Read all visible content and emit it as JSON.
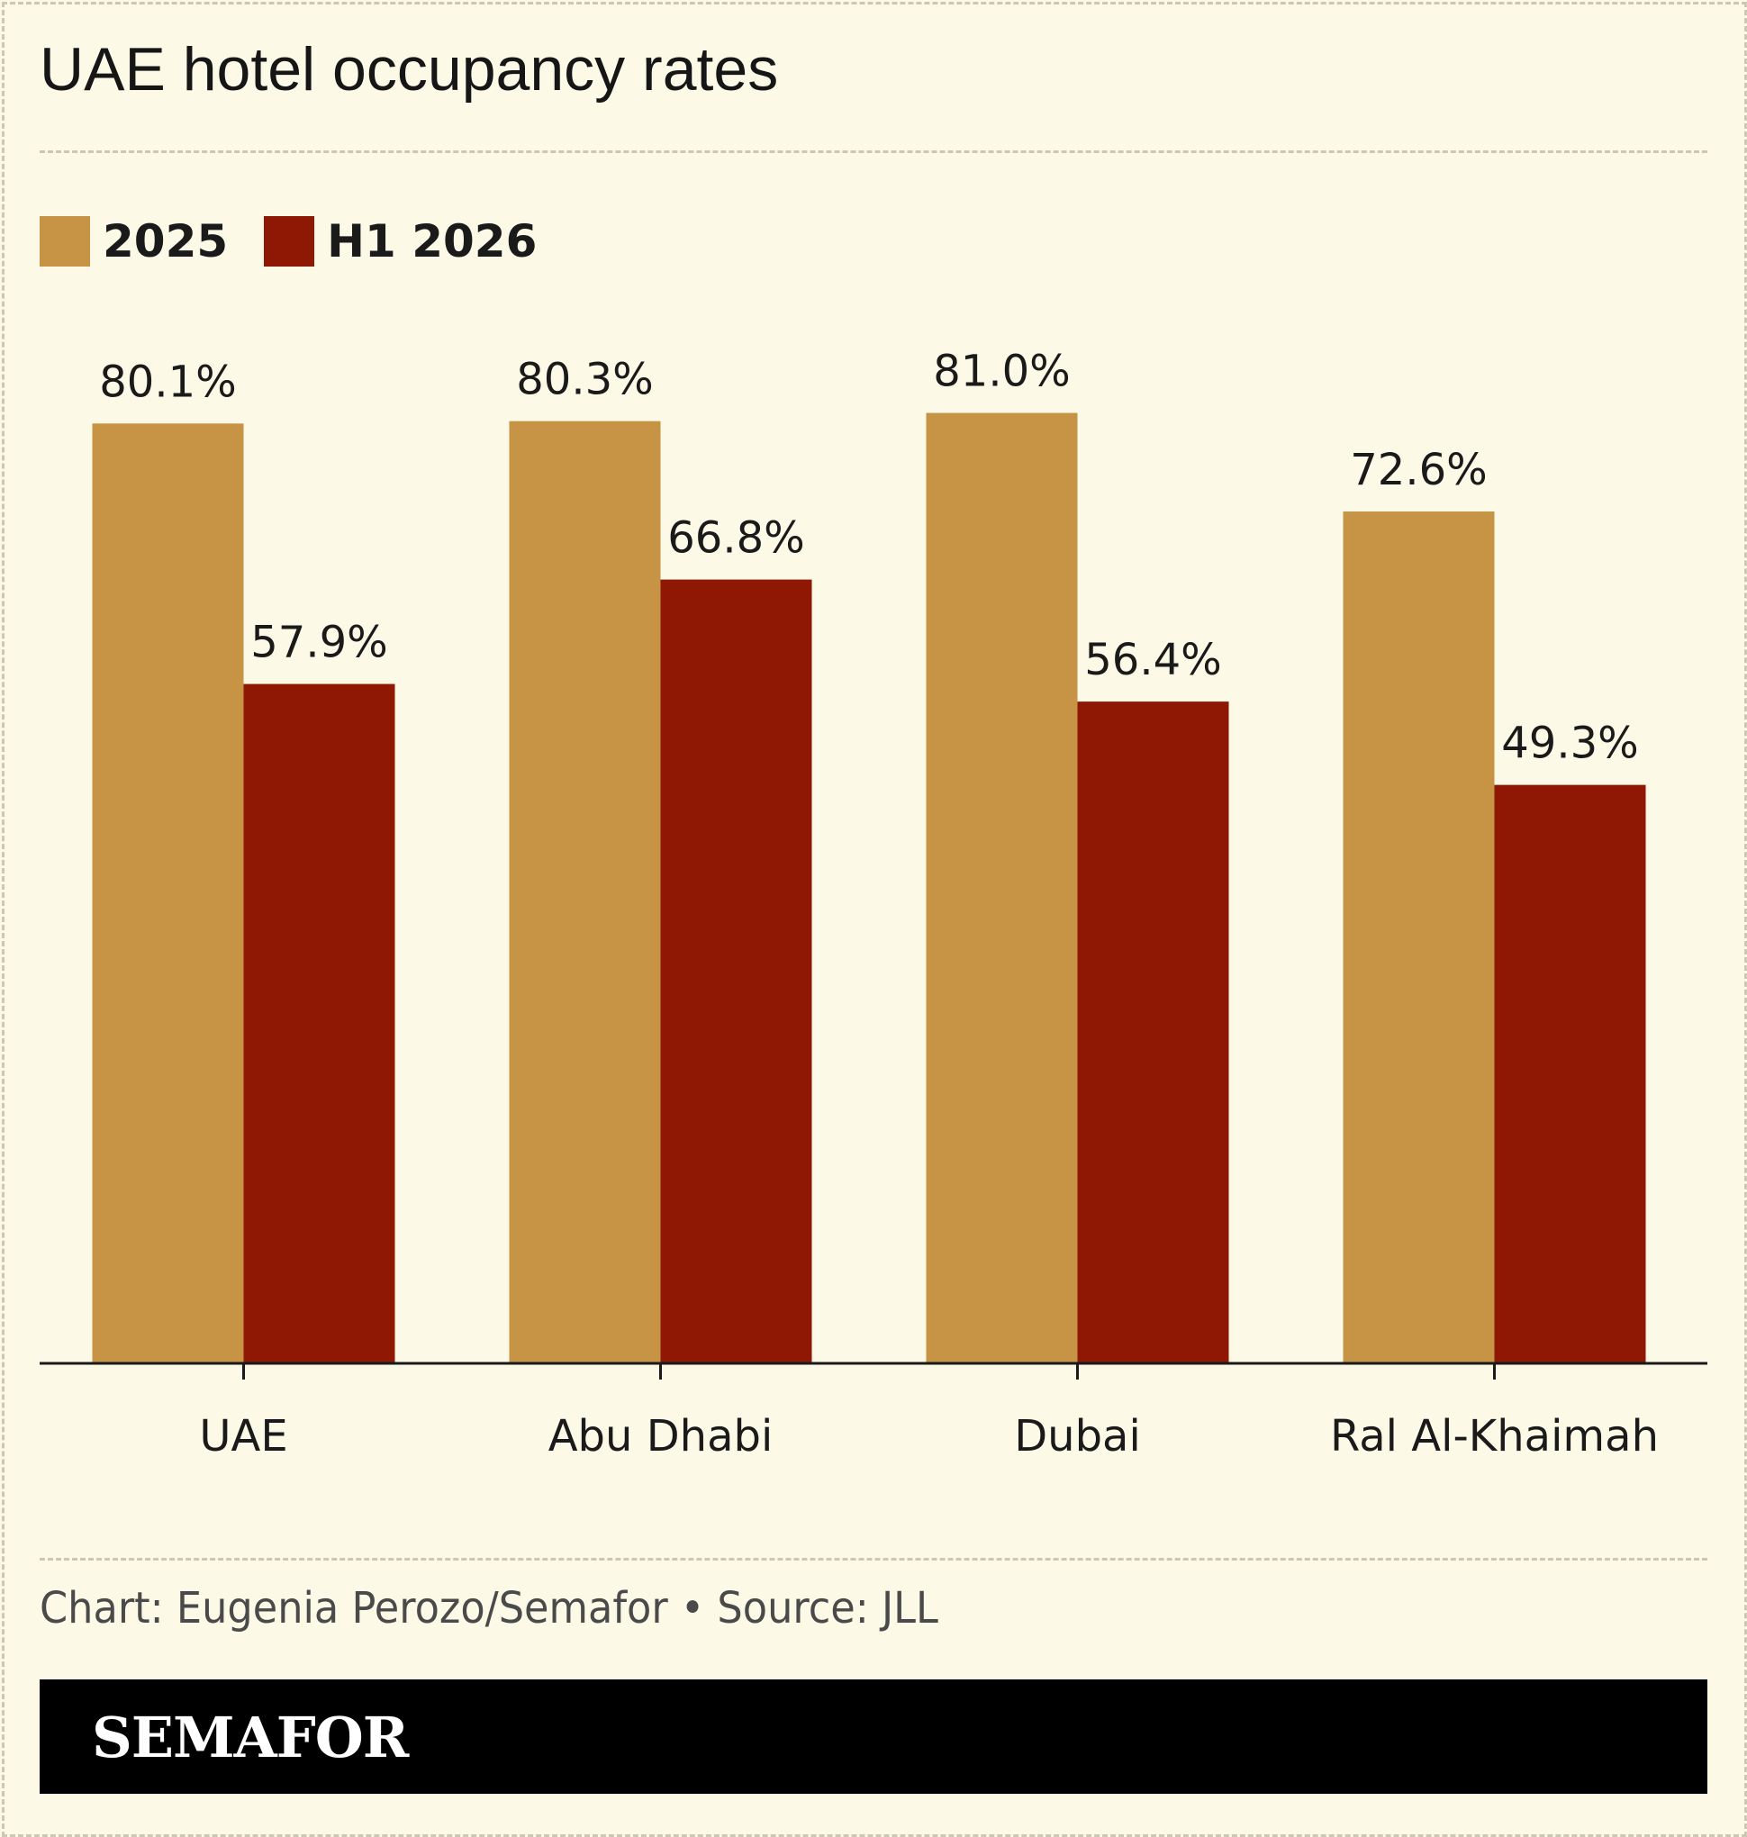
{
  "title": "UAE hotel occupancy rates",
  "legend": [
    {
      "label": "2025",
      "color": "#c69444"
    },
    {
      "label": "H1 2026",
      "color": "#8e1804"
    }
  ],
  "credit": "Chart: Eugenia Perozo/Semafor • Source: JLL",
  "brand": "SEMAFOR",
  "chart_data": {
    "type": "bar",
    "title": "UAE hotel occupancy rates",
    "categories": [
      "UAE",
      "Abu Dhabi",
      "Dubai",
      "Ral Al-Khaimah"
    ],
    "series": [
      {
        "name": "2025",
        "values": [
          80.1,
          80.3,
          81.0,
          72.6
        ],
        "labels": [
          "80.1%",
          "80.3%",
          "81.0%",
          "72.6%"
        ],
        "color": "#c69444"
      },
      {
        "name": "H1 2026",
        "values": [
          57.9,
          66.8,
          56.4,
          49.3
        ],
        "labels": [
          "57.9%",
          "66.8%",
          "56.4%",
          "49.3%"
        ],
        "color": "#8e1804"
      }
    ],
    "ylim": [
      0,
      100
    ],
    "grid": false,
    "legend_position": "top-left"
  }
}
